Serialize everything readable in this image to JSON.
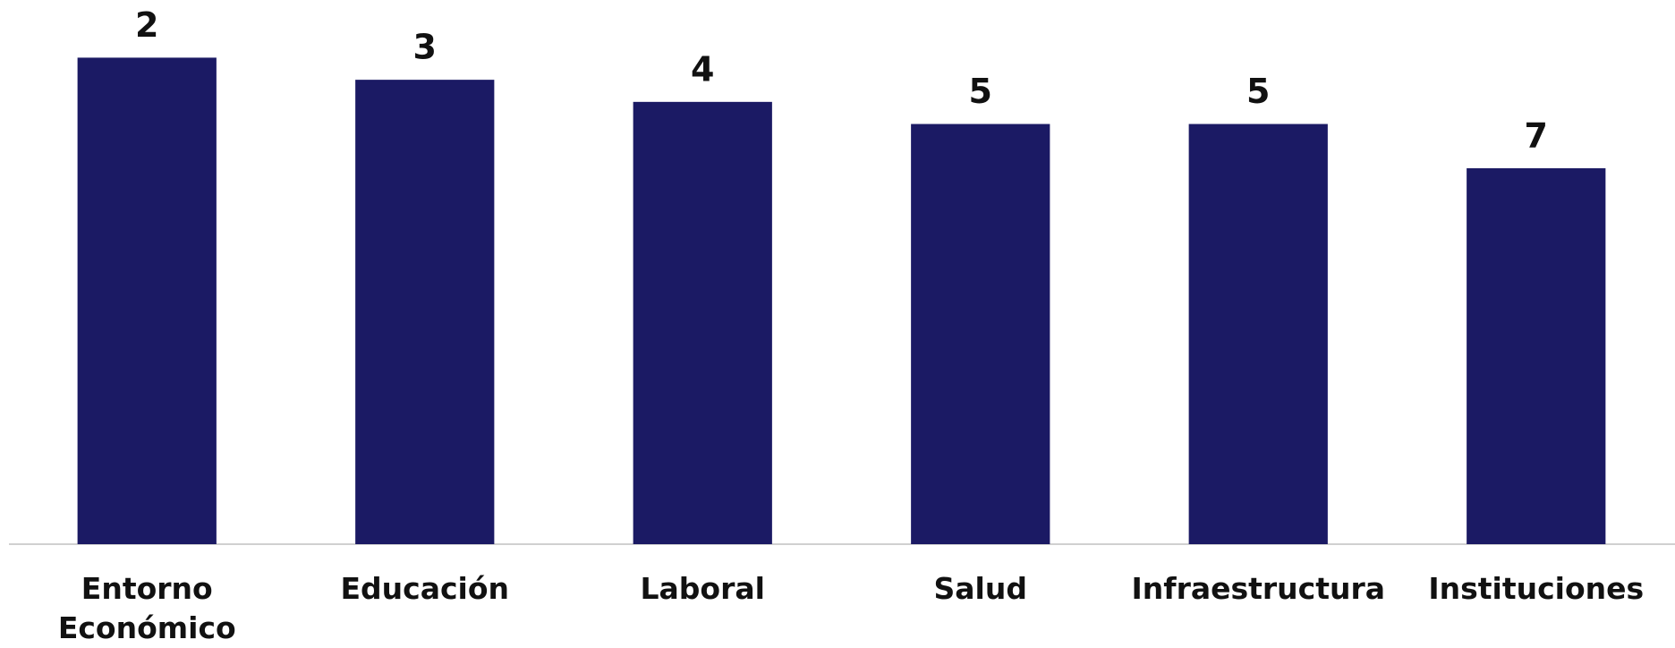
{
  "chart_data": {
    "type": "bar",
    "categories": [
      "Entorno Económico",
      "Educación",
      "Laboral",
      "Salud",
      "Infraestructura",
      "Instituciones"
    ],
    "values": [
      2,
      3,
      4,
      5,
      5,
      7
    ],
    "color": "#1b1a64",
    "ylim": [
      24,
      0
    ]
  }
}
